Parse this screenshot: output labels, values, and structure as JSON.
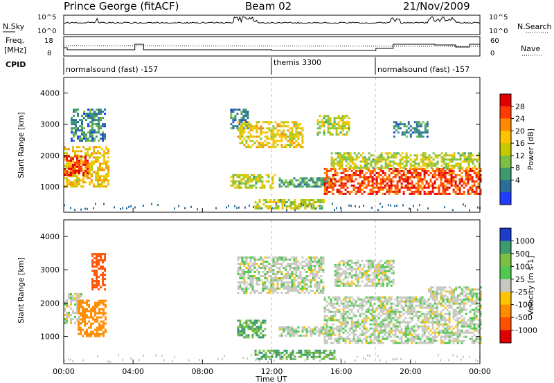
{
  "header": {
    "station": "Prince George (fitACF)",
    "beam": "Beam 02",
    "date": "21/Nov/2009"
  },
  "noise_panel": {
    "left_label": "N.Sky",
    "right_label": "N.Search",
    "left_ticks": [
      "10^5",
      "10^0"
    ],
    "right_ticks": [
      "10^5",
      "10^0"
    ]
  },
  "freq_panel": {
    "left_label_1": "Freq.",
    "left_label_2": "[MHz]",
    "left_ticks": [
      "18",
      "8"
    ],
    "right_label": "Nave",
    "right_ticks": [
      "60",
      "0"
    ]
  },
  "cpid": {
    "label": "CPID",
    "segments": [
      {
        "start": 0,
        "end": 12,
        "text": "normalsound (fast) -157"
      },
      {
        "start": 12,
        "end": 18,
        "text": "themis 3300"
      },
      {
        "start": 18,
        "end": 24,
        "text": "normalsound (fast) -157"
      }
    ]
  },
  "power_colorbar": {
    "title": "Power [dB]",
    "ticks": [
      "28",
      "24",
      "20",
      "16",
      "12",
      "8",
      "4"
    ],
    "colors": [
      "#e00000",
      "#ff3c00",
      "#ff8c00",
      "#ffc400",
      "#c8c800",
      "#7cc043",
      "#3c9a6e",
      "#2a6e9a",
      "#1f3cff"
    ]
  },
  "velocity_colorbar": {
    "title": "Velocity [m s-1]",
    "ticks": [
      "1000",
      "500",
      "100",
      "25",
      "-25",
      "-100",
      "-500",
      "-1000"
    ],
    "colors": [
      "#1f3cc8",
      "#3c9a6e",
      "#7cc043",
      "#50c850",
      "#c8c8c0",
      "#ffc400",
      "#ff8c00",
      "#ff5000",
      "#e00000"
    ]
  },
  "y_axis": {
    "label": "Slant Range [km]",
    "ticks": [
      "4000",
      "3000",
      "2000",
      "1000"
    ]
  },
  "x_axis": {
    "label": "Time UT",
    "ticks": [
      "00:00",
      "04:00",
      "08:00",
      "12:00",
      "16:00",
      "20:00",
      "00:00"
    ]
  },
  "chart_data": {
    "type": "heatmap",
    "x_range_hours": [
      0,
      24
    ],
    "y_range_km": [
      180,
      4500
    ],
    "grid": false,
    "power_echo_regions": [
      {
        "t0": 0.0,
        "t1": 2.6,
        "r0": 1000,
        "r1": 2300,
        "db": 18
      },
      {
        "t0": 0.0,
        "t1": 1.4,
        "r0": 1400,
        "r1": 2000,
        "db": 28
      },
      {
        "t0": 0.4,
        "t1": 2.4,
        "r0": 2500,
        "r1": 3500,
        "db": 6
      },
      {
        "t0": 9.6,
        "t1": 10.6,
        "r0": 2900,
        "r1": 3500,
        "db": 6
      },
      {
        "t0": 10.0,
        "t1": 13.8,
        "r0": 2300,
        "r1": 3100,
        "db": 17
      },
      {
        "t0": 9.6,
        "t1": 12.2,
        "r0": 1000,
        "r1": 1400,
        "db": 14
      },
      {
        "t0": 12.4,
        "t1": 15.6,
        "r0": 1000,
        "r1": 1300,
        "db": 8
      },
      {
        "t0": 11.0,
        "t1": 15.0,
        "r0": 300,
        "r1": 600,
        "db": 14
      },
      {
        "t0": 14.6,
        "t1": 16.4,
        "r0": 2700,
        "r1": 3300,
        "db": 14
      },
      {
        "t0": 15.0,
        "t1": 24.0,
        "r0": 800,
        "r1": 1600,
        "db": 26
      },
      {
        "t0": 15.4,
        "t1": 24.0,
        "r0": 1600,
        "r1": 2100,
        "db": 14
      },
      {
        "t0": 19.0,
        "t1": 21.0,
        "r0": 2600,
        "r1": 3100,
        "db": 6
      }
    ],
    "velocity_echo_regions": [
      {
        "t0": 0.0,
        "t1": 1.0,
        "r0": 1400,
        "r1": 2300,
        "v": 0
      },
      {
        "t0": 0.8,
        "t1": 2.4,
        "r0": 1000,
        "r1": 2100,
        "v": -400
      },
      {
        "t0": 1.6,
        "t1": 2.4,
        "r0": 2400,
        "r1": 3500,
        "v": -800
      },
      {
        "t0": 10.0,
        "t1": 11.6,
        "r0": 1000,
        "r1": 1500,
        "v": 100
      },
      {
        "t0": 10.0,
        "t1": 15.0,
        "r0": 2300,
        "r1": 3400,
        "v": 0
      },
      {
        "t0": 12.4,
        "t1": 15.4,
        "r0": 1000,
        "r1": 1300,
        "v": 0
      },
      {
        "t0": 11.0,
        "t1": 15.6,
        "r0": 300,
        "r1": 600,
        "v": 100
      },
      {
        "t0": 15.0,
        "t1": 24.0,
        "r0": 800,
        "r1": 2200,
        "v": 0
      },
      {
        "t0": 15.6,
        "t1": 19.0,
        "r0": 2500,
        "r1": 3300,
        "v": 0
      },
      {
        "t0": 21.0,
        "t1": 24.0,
        "r0": 2200,
        "r1": 2500,
        "v": 0
      }
    ]
  }
}
